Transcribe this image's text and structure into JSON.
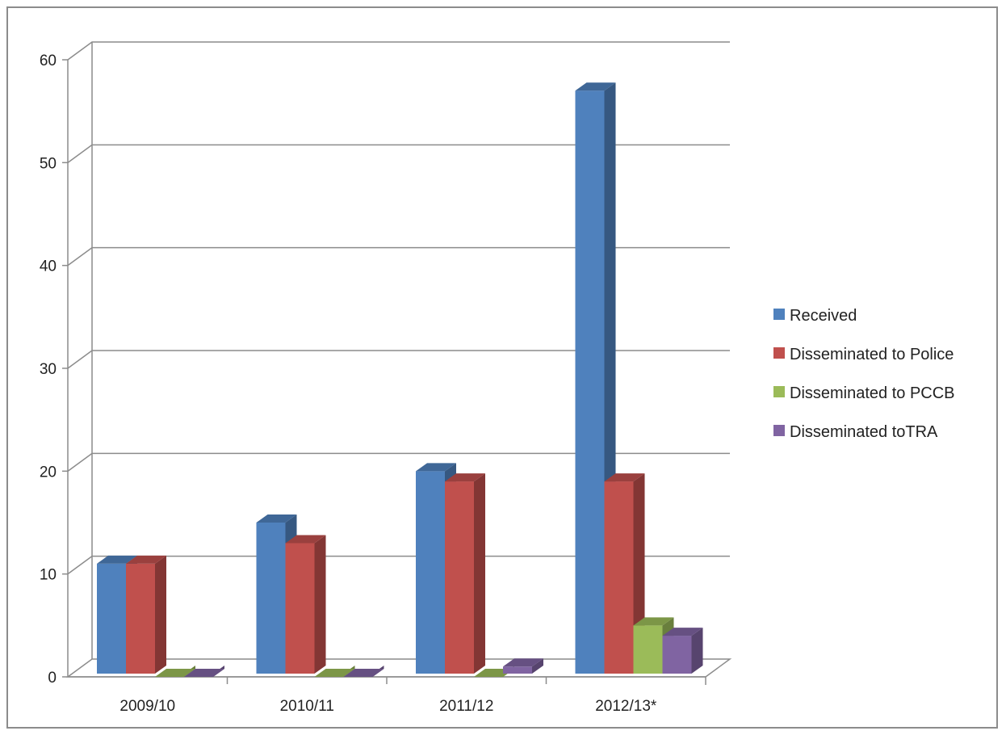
{
  "chart_data": {
    "type": "bar",
    "style": "3d-clustered-column",
    "title": "",
    "xlabel": "",
    "ylabel": "",
    "categories": [
      "2009/10",
      "2010/11",
      "2011/12",
      "2012/13*"
    ],
    "series": [
      {
        "name": "Received",
        "values": [
          11,
          15,
          20,
          57
        ],
        "color": "#4f81bd"
      },
      {
        "name": "Disseminated to Police",
        "values": [
          11,
          13,
          19,
          19
        ],
        "color": "#c0504d"
      },
      {
        "name": "Disseminated to PCCB",
        "values": [
          0,
          0,
          0,
          5
        ],
        "color": "#9bbb59"
      },
      {
        "name": "Disseminated toTRA",
        "values": [
          0,
          0,
          1,
          4
        ],
        "color": "#8064a2"
      }
    ],
    "ylim": [
      0,
      60
    ],
    "yticks": [
      "0",
      "10",
      "20",
      "30",
      "40",
      "50",
      "60"
    ],
    "grid": true,
    "legend_position": "right"
  }
}
